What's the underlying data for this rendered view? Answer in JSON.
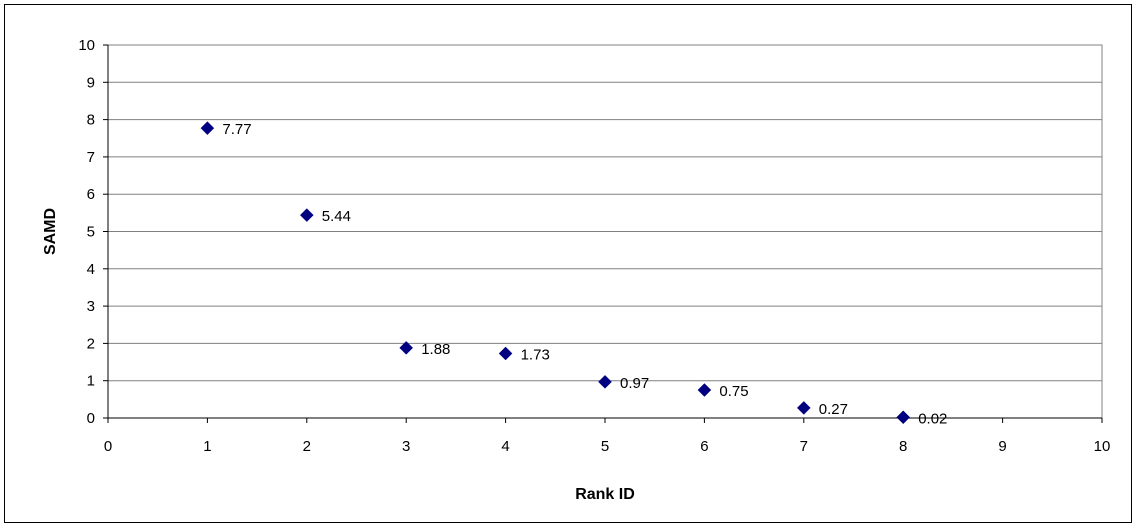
{
  "chart_data": {
    "type": "scatter",
    "title": "",
    "xlabel": "Rank ID",
    "ylabel": "SAMD",
    "xlim": [
      0,
      10
    ],
    "ylim": [
      0,
      10
    ],
    "x_ticks": [
      "0",
      "1",
      "2",
      "3",
      "4",
      "5",
      "6",
      "7",
      "8",
      "9",
      "10"
    ],
    "y_ticks": [
      "0",
      "1",
      "2",
      "3",
      "4",
      "5",
      "6",
      "7",
      "8",
      "9",
      "10"
    ],
    "grid": "horizontal",
    "legend": "none",
    "marker": "diamond",
    "marker_color": "#000080",
    "series": [
      {
        "x": [
          1,
          2,
          3,
          4,
          5,
          6,
          7,
          8
        ],
        "y": [
          7.77,
          5.44,
          1.88,
          1.73,
          0.97,
          0.75,
          0.27,
          0.02
        ],
        "labels": [
          "7.77",
          "5.44",
          "1.88",
          "1.73",
          "0.97",
          "0.75",
          "0.27",
          "0.02"
        ]
      }
    ]
  }
}
